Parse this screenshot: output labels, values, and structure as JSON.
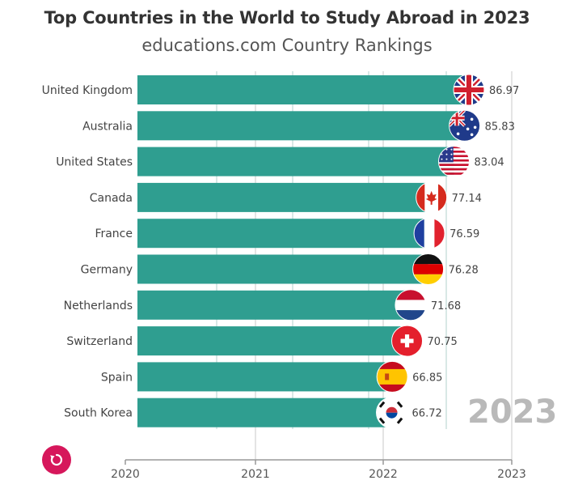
{
  "header": {
    "title": "Top Countries in the World to Study Abroad in 2023",
    "subtitle": "educations.com Country Rankings"
  },
  "watermark_year": "2023",
  "controls": {
    "replay_icon": "replay-icon",
    "replay_color": "#d6175b"
  },
  "colors": {
    "bar": "#2f9e90",
    "axis": "#999999",
    "grid": "#c9c9c9"
  },
  "chart_data": {
    "type": "bar",
    "orientation": "horizontal",
    "categories": [
      "United Kingdom",
      "Australia",
      "United States",
      "Canada",
      "France",
      "Germany",
      "Netherlands",
      "Switzerland",
      "Spain",
      "South Korea"
    ],
    "values": [
      86.97,
      85.83,
      83.04,
      77.14,
      76.59,
      76.28,
      71.68,
      70.75,
      66.85,
      66.72
    ],
    "xaxis_ticks": [
      "2020",
      "2021",
      "2022",
      "2023"
    ],
    "flag_icons": [
      "uk-flag-icon",
      "australia-flag-icon",
      "usa-flag-icon",
      "canada-flag-icon",
      "france-flag-icon",
      "germany-flag-icon",
      "netherlands-flag-icon",
      "switzerland-flag-icon",
      "spain-flag-icon",
      "south-korea-flag-icon"
    ],
    "title": "Top Countries in the World to Study Abroad in 2023",
    "subtitle": "educations.com Country Rankings",
    "grid": true,
    "legend": "none"
  }
}
